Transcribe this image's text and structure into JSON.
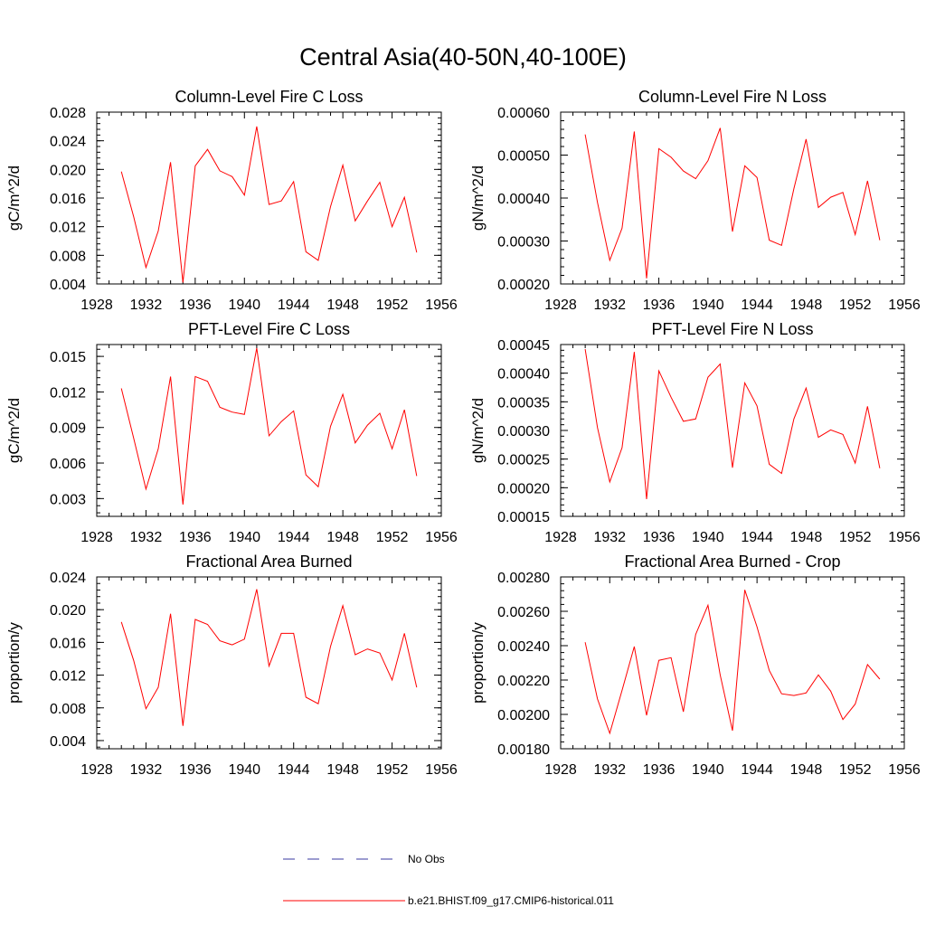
{
  "title": "Central Asia(40-50N,40-100E)",
  "legend": [
    {
      "label": "No Obs",
      "color": "#3a3aa0",
      "dash": true
    },
    {
      "label": "b.e21.BHIST.f09_g17.CMIP6-historical.011",
      "color": "#ff0000",
      "dash": false
    }
  ],
  "chart_data": [
    {
      "type": "line",
      "title": "Column-Level Fire C Loss",
      "ylabel": "gC/m^2/d",
      "xlim": [
        1928,
        1956
      ],
      "ylim": [
        0.004,
        0.028
      ],
      "xticks": [
        1928,
        1932,
        1936,
        1940,
        1944,
        1948,
        1952,
        1956
      ],
      "yticks": [
        "0.004",
        "0.008",
        "0.012",
        "0.016",
        "0.020",
        "0.024",
        "0.028"
      ],
      "x": [
        1930,
        1931,
        1932,
        1933,
        1934,
        1935,
        1936,
        1937,
        1938,
        1939,
        1940,
        1941,
        1942,
        1943,
        1944,
        1945,
        1946,
        1947,
        1948,
        1949,
        1950,
        1951,
        1952,
        1953,
        1954
      ],
      "series": [
        {
          "name": "b.e21.BHIST.f09_g17.CMIP6-historical.011",
          "color": "#ff0000",
          "values": [
            0.0197,
            0.0134,
            0.0063,
            0.0114,
            0.021,
            0.0042,
            0.0205,
            0.0228,
            0.0198,
            0.019,
            0.0164,
            0.026,
            0.0151,
            0.0156,
            0.0183,
            0.0085,
            0.0073,
            0.0148,
            0.0206,
            0.0128,
            0.0156,
            0.0182,
            0.012,
            0.0161,
            0.0084
          ]
        }
      ]
    },
    {
      "type": "line",
      "title": "Column-Level Fire N Loss",
      "ylabel": "gN/m^2/d",
      "xlim": [
        1928,
        1956
      ],
      "ylim": [
        0.0002,
        0.0006
      ],
      "xticks": [
        1928,
        1932,
        1936,
        1940,
        1944,
        1948,
        1952,
        1956
      ],
      "yticks": [
        "0.00020",
        "0.00030",
        "0.00040",
        "0.00050",
        "0.00060"
      ],
      "x": [
        1930,
        1931,
        1932,
        1933,
        1934,
        1935,
        1936,
        1937,
        1938,
        1939,
        1940,
        1941,
        1942,
        1943,
        1944,
        1945,
        1946,
        1947,
        1948,
        1949,
        1950,
        1951,
        1952,
        1953,
        1954
      ],
      "series": [
        {
          "name": "b.e21.BHIST.f09_g17.CMIP6-historical.011",
          "color": "#ff0000",
          "values": [
            0.000548,
            0.00039,
            0.000255,
            0.00033,
            0.000555,
            0.000213,
            0.000515,
            0.000495,
            0.000463,
            0.000445,
            0.000487,
            0.000563,
            0.000322,
            0.000475,
            0.000448,
            0.000302,
            0.00029,
            0.000422,
            0.000537,
            0.000378,
            0.000402,
            0.000413,
            0.000315,
            0.00044,
            0.000302
          ]
        }
      ]
    },
    {
      "type": "line",
      "title": "PFT-Level Fire C Loss",
      "ylabel": "gC/m^2/d",
      "xlim": [
        1928,
        1956
      ],
      "ylim": [
        0.0015,
        0.016
      ],
      "xticks": [
        1928,
        1932,
        1936,
        1940,
        1944,
        1948,
        1952,
        1956
      ],
      "yticks": [
        "0.003",
        "0.006",
        "0.009",
        "0.012",
        "0.015"
      ],
      "x": [
        1930,
        1931,
        1932,
        1933,
        1934,
        1935,
        1936,
        1937,
        1938,
        1939,
        1940,
        1941,
        1942,
        1943,
        1944,
        1945,
        1946,
        1947,
        1948,
        1949,
        1950,
        1951,
        1952,
        1953,
        1954
      ],
      "series": [
        {
          "name": "b.e21.BHIST.f09_g17.CMIP6-historical.011",
          "color": "#ff0000",
          "values": [
            0.0123,
            0.0081,
            0.0038,
            0.0072,
            0.0133,
            0.0025,
            0.0133,
            0.0129,
            0.0107,
            0.0103,
            0.0101,
            0.0157,
            0.0083,
            0.0095,
            0.0104,
            0.005,
            0.004,
            0.0091,
            0.0118,
            0.0077,
            0.0092,
            0.0102,
            0.0072,
            0.0105,
            0.0049
          ]
        }
      ]
    },
    {
      "type": "line",
      "title": "PFT-Level Fire N Loss",
      "ylabel": "gN/m^2/d",
      "xlim": [
        1928,
        1956
      ],
      "ylim": [
        0.00015,
        0.00045
      ],
      "xticks": [
        1928,
        1932,
        1936,
        1940,
        1944,
        1948,
        1952,
        1956
      ],
      "yticks": [
        "0.00015",
        "0.00020",
        "0.00025",
        "0.00030",
        "0.00035",
        "0.00040",
        "0.00045"
      ],
      "x": [
        1930,
        1931,
        1932,
        1933,
        1934,
        1935,
        1936,
        1937,
        1938,
        1939,
        1940,
        1941,
        1942,
        1943,
        1944,
        1945,
        1946,
        1947,
        1948,
        1949,
        1950,
        1951,
        1952,
        1953,
        1954
      ],
      "series": [
        {
          "name": "b.e21.BHIST.f09_g17.CMIP6-historical.011",
          "color": "#ff0000",
          "values": [
            0.000442,
            0.000305,
            0.00021,
            0.00027,
            0.000437,
            0.00018,
            0.000404,
            0.000358,
            0.000316,
            0.00032,
            0.000393,
            0.000416,
            0.000235,
            0.000383,
            0.000343,
            0.000241,
            0.000225,
            0.00032,
            0.000374,
            0.000288,
            0.000301,
            0.000293,
            0.000243,
            0.000342,
            0.000234
          ]
        }
      ]
    },
    {
      "type": "line",
      "title": "Fractional Area Burned",
      "ylabel": "proportion/y",
      "xlim": [
        1928,
        1956
      ],
      "ylim": [
        0.003,
        0.024
      ],
      "xticks": [
        1928,
        1932,
        1936,
        1940,
        1944,
        1948,
        1952,
        1956
      ],
      "yticks": [
        "0.004",
        "0.008",
        "0.012",
        "0.016",
        "0.020",
        "0.024"
      ],
      "x": [
        1930,
        1931,
        1932,
        1933,
        1934,
        1935,
        1936,
        1937,
        1938,
        1939,
        1940,
        1941,
        1942,
        1943,
        1944,
        1945,
        1946,
        1947,
        1948,
        1949,
        1950,
        1951,
        1952,
        1953,
        1954
      ],
      "series": [
        {
          "name": "b.e21.BHIST.f09_g17.CMIP6-historical.011",
          "color": "#ff0000",
          "values": [
            0.0185,
            0.0138,
            0.0079,
            0.0105,
            0.0195,
            0.0058,
            0.0188,
            0.0182,
            0.0162,
            0.0157,
            0.0164,
            0.0225,
            0.0131,
            0.0171,
            0.0171,
            0.0093,
            0.0085,
            0.0155,
            0.0205,
            0.0145,
            0.0152,
            0.0147,
            0.0114,
            0.0171,
            0.0105
          ]
        }
      ]
    },
    {
      "type": "line",
      "title": "Fractional Area Burned - Crop",
      "ylabel": "proportion/y",
      "xlim": [
        1928,
        1956
      ],
      "ylim": [
        0.0018,
        0.0028
      ],
      "xticks": [
        1928,
        1932,
        1936,
        1940,
        1944,
        1948,
        1952,
        1956
      ],
      "yticks": [
        "0.00180",
        "0.00200",
        "0.00220",
        "0.00240",
        "0.00260",
        "0.00280"
      ],
      "x": [
        1930,
        1931,
        1932,
        1933,
        1934,
        1935,
        1936,
        1937,
        1938,
        1939,
        1940,
        1941,
        1942,
        1943,
        1944,
        1945,
        1946,
        1947,
        1948,
        1949,
        1950,
        1951,
        1952,
        1953,
        1954
      ],
      "series": [
        {
          "name": "b.e21.BHIST.f09_g17.CMIP6-historical.011",
          "color": "#ff0000",
          "values": [
            0.00242,
            0.00209,
            0.00189,
            0.00214,
            0.002395,
            0.001995,
            0.002315,
            0.00233,
            0.002015,
            0.002465,
            0.002635,
            0.00223,
            0.001905,
            0.002725,
            0.00251,
            0.002255,
            0.00212,
            0.00211,
            0.002125,
            0.00223,
            0.002135,
            0.00197,
            0.00206,
            0.00229,
            0.002205
          ]
        }
      ]
    }
  ]
}
